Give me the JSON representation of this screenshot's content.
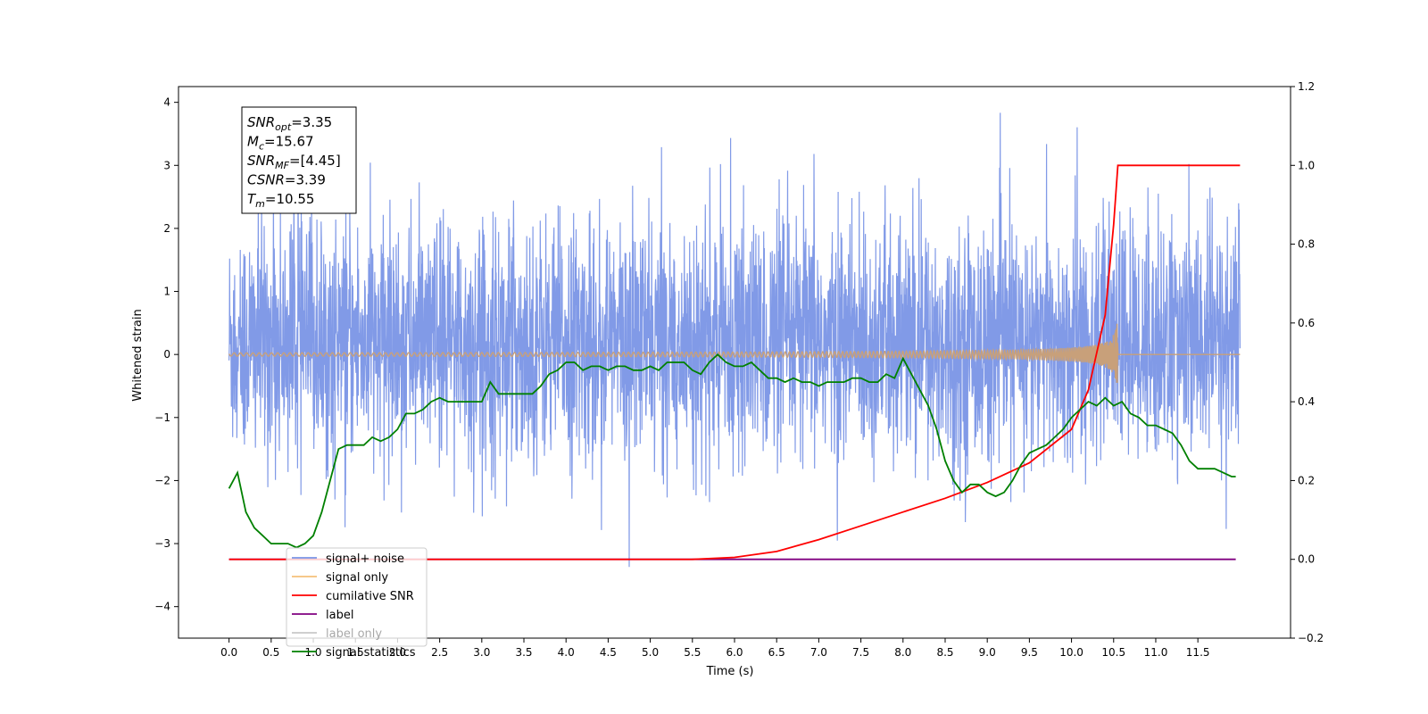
{
  "chart_data": {
    "type": "line",
    "xlabel": "Time (s)",
    "ylabel_left": "Whitened strain",
    "ylabel_right": "",
    "xlim": [
      -0.6,
      12.6
    ],
    "ylim_left": [
      -4.5,
      4.25
    ],
    "ylim_right": [
      -0.2,
      1.2
    ],
    "x_ticks": [
      "0.0",
      "0.5",
      "1.0",
      "1.5",
      "2.0",
      "2.5",
      "3.0",
      "3.5",
      "4.0",
      "4.5",
      "5.0",
      "5.5",
      "6.0",
      "6.5",
      "7.0",
      "7.5",
      "8.0",
      "8.5",
      "9.0",
      "9.5",
      "10.0",
      "10.5",
      "11.0",
      "11.5"
    ],
    "y_ticks_left": [
      "4",
      "3",
      "2",
      "1",
      "0",
      "−1",
      "−2",
      "−3",
      "−4"
    ],
    "y_ticks_right": [
      "1.2",
      "1.0",
      "0.8",
      "0.6",
      "0.4",
      "0.2",
      "0.0",
      "−0.2"
    ],
    "grid": false,
    "legend_position": "bottom-left",
    "annotation": {
      "lines": [
        {
          "sym": "SNR",
          "sub": "opt",
          "val": "=3.35"
        },
        {
          "sym": "M",
          "sub": "c",
          "val": "=15.67"
        },
        {
          "sym": "SNR",
          "sub": "MF",
          "val": "=[4.45]"
        },
        {
          "sym": "CSNR",
          "sub": "",
          "val": "=3.39"
        },
        {
          "sym": "T",
          "sub": "m",
          "val": "=10.55"
        }
      ]
    },
    "series": [
      {
        "name": "signal+ noise",
        "axis": "left",
        "color": "#7a95e6",
        "description": "whitened noisy strain, unit-variance noise, time 0 to 12 s"
      },
      {
        "name": "signal only",
        "axis": "left",
        "color": "#f5b766",
        "chirp_end_time": 10.55,
        "peak_amplitude": 0.6
      },
      {
        "name": "cumilative SNR",
        "axis": "right",
        "color": "#ff0000",
        "x": [
          5.5,
          6.0,
          6.5,
          7.0,
          7.5,
          8.0,
          8.5,
          9.0,
          9.5,
          10.0,
          10.2,
          10.4,
          10.5,
          10.55,
          12.0
        ],
        "y": [
          0.0,
          0.005,
          0.02,
          0.05,
          0.085,
          0.12,
          0.155,
          0.195,
          0.245,
          0.33,
          0.43,
          0.62,
          0.85,
          1.0,
          1.0
        ]
      },
      {
        "name": "label",
        "axis": "right",
        "color": "#800080",
        "x": [
          0.0,
          11.95
        ],
        "y": [
          0.0,
          0.0
        ]
      },
      {
        "name": "label only",
        "axis": "right",
        "color": "#c8c8c8",
        "x": [],
        "y": []
      },
      {
        "name": "signal statistics",
        "axis": "right",
        "color": "#008000",
        "x": [
          0.0,
          0.1,
          0.2,
          0.3,
          0.4,
          0.5,
          0.6,
          0.7,
          0.8,
          0.9,
          1.0,
          1.1,
          1.2,
          1.3,
          1.4,
          1.5,
          1.6,
          1.7,
          1.8,
          1.9,
          2.0,
          2.1,
          2.2,
          2.3,
          2.4,
          2.5,
          2.6,
          2.7,
          2.8,
          2.9,
          3.0,
          3.1,
          3.2,
          3.3,
          3.4,
          3.5,
          3.6,
          3.7,
          3.8,
          3.9,
          4.0,
          4.1,
          4.2,
          4.3,
          4.4,
          4.5,
          4.6,
          4.7,
          4.8,
          4.9,
          5.0,
          5.1,
          5.2,
          5.3,
          5.4,
          5.5,
          5.6,
          5.7,
          5.8,
          5.9,
          6.0,
          6.1,
          6.2,
          6.3,
          6.4,
          6.5,
          6.6,
          6.7,
          6.8,
          6.9,
          7.0,
          7.1,
          7.2,
          7.3,
          7.4,
          7.5,
          7.6,
          7.7,
          7.8,
          7.9,
          8.0,
          8.1,
          8.2,
          8.3,
          8.4,
          8.5,
          8.6,
          8.7,
          8.8,
          8.9,
          9.0,
          9.1,
          9.2,
          9.3,
          9.4,
          9.5,
          9.6,
          9.7,
          9.8,
          9.9,
          10.0,
          10.1,
          10.2,
          10.3,
          10.4,
          10.5,
          10.6,
          10.7,
          10.8,
          10.9,
          11.0,
          11.1,
          11.2,
          11.3,
          11.4,
          11.5,
          11.6,
          11.7,
          11.8,
          11.9,
          11.95
        ],
        "y": [
          0.18,
          0.22,
          0.12,
          0.08,
          0.06,
          0.04,
          0.04,
          0.04,
          0.03,
          0.04,
          0.06,
          0.12,
          0.2,
          0.28,
          0.29,
          0.29,
          0.29,
          0.31,
          0.3,
          0.31,
          0.33,
          0.37,
          0.37,
          0.38,
          0.4,
          0.41,
          0.4,
          0.4,
          0.4,
          0.4,
          0.4,
          0.45,
          0.42,
          0.42,
          0.42,
          0.42,
          0.42,
          0.44,
          0.47,
          0.48,
          0.5,
          0.5,
          0.48,
          0.49,
          0.49,
          0.48,
          0.49,
          0.49,
          0.48,
          0.48,
          0.49,
          0.48,
          0.5,
          0.5,
          0.5,
          0.48,
          0.47,
          0.5,
          0.52,
          0.5,
          0.49,
          0.49,
          0.5,
          0.48,
          0.46,
          0.46,
          0.45,
          0.46,
          0.45,
          0.45,
          0.44,
          0.45,
          0.45,
          0.45,
          0.46,
          0.46,
          0.45,
          0.45,
          0.47,
          0.46,
          0.51,
          0.47,
          0.43,
          0.39,
          0.33,
          0.25,
          0.2,
          0.17,
          0.19,
          0.19,
          0.17,
          0.16,
          0.17,
          0.2,
          0.24,
          0.27,
          0.28,
          0.29,
          0.31,
          0.33,
          0.36,
          0.38,
          0.4,
          0.39,
          0.41,
          0.39,
          0.4,
          0.37,
          0.36,
          0.34,
          0.34,
          0.33,
          0.32,
          0.29,
          0.25,
          0.23,
          0.23,
          0.23,
          0.22,
          0.21,
          0.21
        ]
      }
    ]
  }
}
